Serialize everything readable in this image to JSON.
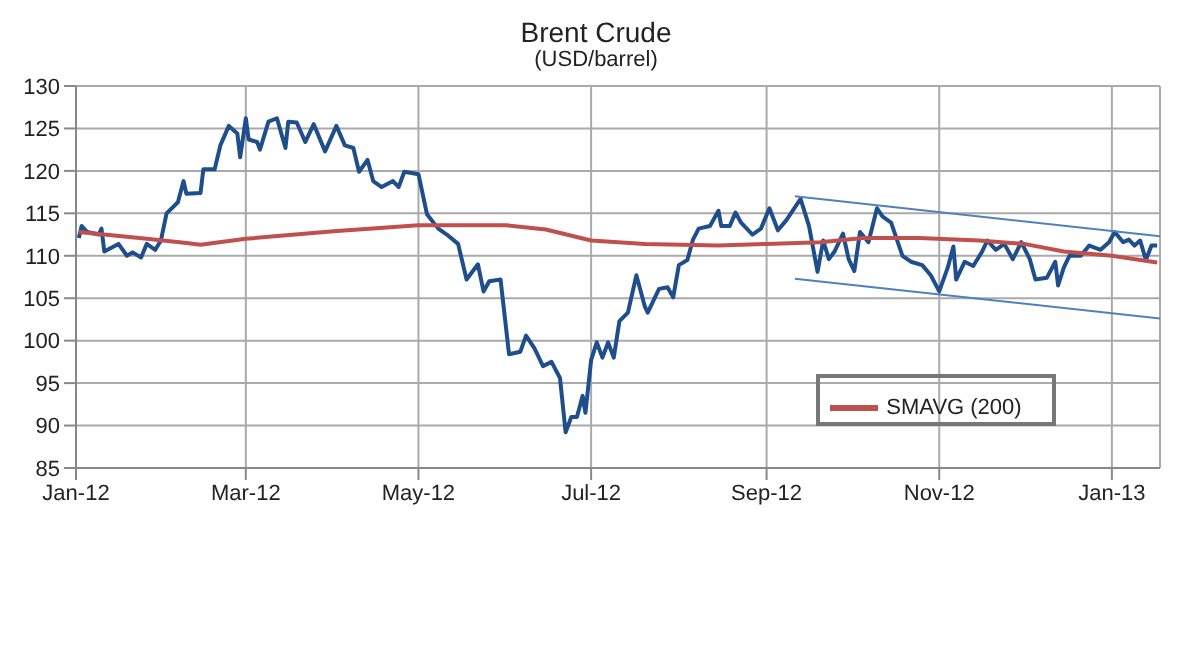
{
  "chart_data": {
    "type": "line",
    "title": "Brent Crude",
    "subtitle": "(USD/barrel)",
    "xlim": [
      "2012-01-01",
      "2013-01-18"
    ],
    "xticks": [
      {
        "value": "2012-01-01",
        "label": "Jan-12"
      },
      {
        "value": "2012-03-01",
        "label": "Mar-12"
      },
      {
        "value": "2012-05-01",
        "label": "May-12"
      },
      {
        "value": "2012-07-01",
        "label": "Jul-12"
      },
      {
        "value": "2012-09-01",
        "label": "Sep-12"
      },
      {
        "value": "2012-11-01",
        "label": "Nov-12"
      },
      {
        "value": "2013-01-01",
        "label": "Jan-13"
      }
    ],
    "ylim": [
      85,
      130
    ],
    "yticks": [
      85,
      90,
      95,
      100,
      105,
      110,
      115,
      120,
      125,
      130
    ],
    "grid": true,
    "legend": "bottom right",
    "marker": "none",
    "line_style": "solid",
    "series": [
      {
        "color": "#1f4e8c",
        "x": [
          "2012-01-02",
          "2012-01-03",
          "2012-01-05",
          "2012-01-09",
          "2012-01-10",
          "2012-01-11",
          "2012-01-16",
          "2012-01-19",
          "2012-01-21",
          "2012-01-24",
          "2012-01-26",
          "2012-01-29",
          "2012-01-31",
          "2012-02-02",
          "2012-02-06",
          "2012-02-08",
          "2012-02-09",
          "2012-02-14",
          "2012-02-15",
          "2012-02-19",
          "2012-02-21",
          "2012-02-24",
          "2012-02-27",
          "2012-02-28",
          "2012-03-01",
          "2012-03-02",
          "2012-03-05",
          "2012-03-06",
          "2012-03-09",
          "2012-03-12",
          "2012-03-15",
          "2012-03-16",
          "2012-03-19",
          "2012-03-22",
          "2012-03-25",
          "2012-03-29",
          "2012-04-02",
          "2012-04-05",
          "2012-04-08",
          "2012-04-10",
          "2012-04-13",
          "2012-04-15",
          "2012-04-18",
          "2012-04-22",
          "2012-04-24",
          "2012-04-26",
          "2012-05-01",
          "2012-05-04",
          "2012-05-08",
          "2012-05-11",
          "2012-05-15",
          "2012-05-18",
          "2012-05-22",
          "2012-05-24",
          "2012-05-26",
          "2012-05-30",
          "2012-06-02",
          "2012-06-06",
          "2012-06-08",
          "2012-06-11",
          "2012-06-14",
          "2012-06-17",
          "2012-06-20",
          "2012-06-22",
          "2012-06-24",
          "2012-06-26",
          "2012-06-28",
          "2012-06-29",
          "2012-07-01",
          "2012-07-03",
          "2012-07-05",
          "2012-07-07",
          "2012-07-09",
          "2012-07-11",
          "2012-07-14",
          "2012-07-17",
          "2012-07-20",
          "2012-07-21",
          "2012-07-25",
          "2012-07-28",
          "2012-07-30",
          "2012-08-01",
          "2012-08-04",
          "2012-08-06",
          "2012-08-08",
          "2012-08-12",
          "2012-08-15",
          "2012-08-16",
          "2012-08-19",
          "2012-08-21",
          "2012-08-23",
          "2012-08-27",
          "2012-08-30",
          "2012-09-02",
          "2012-09-05",
          "2012-09-08",
          "2012-09-13",
          "2012-09-16",
          "2012-09-19",
          "2012-09-21",
          "2012-09-23",
          "2012-09-25",
          "2012-09-28",
          "2012-09-30",
          "2012-10-02",
          "2012-10-04",
          "2012-10-07",
          "2012-10-10",
          "2012-10-12",
          "2012-10-15",
          "2012-10-19",
          "2012-10-22",
          "2012-10-26",
          "2012-10-29",
          "2012-11-01",
          "2012-11-04",
          "2012-11-06",
          "2012-11-07",
          "2012-11-10",
          "2012-11-13",
          "2012-11-16",
          "2012-11-18",
          "2012-11-21",
          "2012-11-24",
          "2012-11-27",
          "2012-11-30",
          "2012-12-03",
          "2012-12-05",
          "2012-12-09",
          "2012-12-12",
          "2012-12-13",
          "2012-12-15",
          "2012-12-17",
          "2012-12-21",
          "2012-12-24",
          "2012-12-28",
          "2012-12-31",
          "2013-01-02",
          "2013-01-05",
          "2013-01-07",
          "2013-01-09",
          "2013-01-11",
          "2013-01-13",
          "2013-01-15",
          "2013-01-17"
        ],
        "values": [
          112.1,
          113.5,
          112.8,
          112.5,
          113.2,
          110.5,
          111.4,
          110,
          110.4,
          109.8,
          111.4,
          110.7,
          111.8,
          115,
          116.3,
          118.8,
          117.3,
          117.4,
          120.2,
          120.2,
          123,
          125.3,
          124.4,
          121.6,
          126.2,
          123.7,
          123.4,
          122.5,
          125.8,
          126.2,
          122.7,
          125.8,
          125.7,
          123.4,
          125.5,
          122.3,
          125.3,
          123,
          122.7,
          119.9,
          121.3,
          118.8,
          118.1,
          118.8,
          118.1,
          119.9,
          119.6,
          114.9,
          113.2,
          112.5,
          111.4,
          107.2,
          109,
          105.8,
          107,
          107.2,
          98.4,
          98.7,
          100.6,
          99.1,
          97,
          97.5,
          95.6,
          89.2,
          91,
          91,
          93.5,
          91.5,
          97.7,
          99.8,
          98,
          99.8,
          98,
          102.3,
          103.3,
          107.7,
          104,
          103.3,
          106.1,
          106.3,
          105.1,
          108.9,
          109.5,
          111.9,
          113.2,
          113.5,
          115.3,
          113.5,
          113.5,
          115.1,
          113.9,
          112.5,
          113.2,
          115.6,
          113,
          114.2,
          116.7,
          113.5,
          108.1,
          111.8,
          109.6,
          110.5,
          112.6,
          109.6,
          108.2,
          112.8,
          111.6,
          115.6,
          114.6,
          113.9,
          110,
          109.3,
          108.9,
          107.7,
          105.8,
          108.6,
          111.1,
          107.2,
          109.3,
          108.8,
          110.4,
          111.8,
          110.7,
          111.4,
          109.6,
          111.6,
          109.6,
          107.2,
          107.4,
          109.3,
          106.5,
          108.6,
          110,
          110,
          111.2,
          110.7,
          111.6,
          112.8,
          111.6,
          111.9,
          111.2,
          111.8,
          109.5,
          111.2,
          111.2
        ]
      },
      {
        "name": "SMAVG (200)",
        "color": "#c0504d",
        "x": [
          "2012-01-02",
          "2012-01-26",
          "2012-02-09",
          "2012-02-14",
          "2012-03-01",
          "2012-04-01",
          "2012-05-01",
          "2012-06-01",
          "2012-06-15",
          "2012-07-01",
          "2012-07-20",
          "2012-08-15",
          "2012-09-01",
          "2012-09-20",
          "2012-10-05",
          "2012-10-25",
          "2012-11-15",
          "2012-12-01",
          "2012-12-15",
          "2013-01-01",
          "2013-01-17"
        ],
        "values": [
          112.8,
          112,
          111.5,
          111.3,
          112,
          112.9,
          113.6,
          113.6,
          113.1,
          111.8,
          111.4,
          111.2,
          111.4,
          111.6,
          112.1,
          112.1,
          111.8,
          111.4,
          110.5,
          110,
          109.2
        ]
      },
      {
        "type": "line",
        "color": "#4f81bd",
        "x": [
          "2012-09-11",
          "2013-01-18"
        ],
        "values": [
          117,
          112.3
        ]
      },
      {
        "type": "line",
        "color": "#4f81bd",
        "x": [
          "2012-09-11",
          "2013-01-18"
        ],
        "values": [
          107.3,
          102.6
        ]
      }
    ]
  }
}
